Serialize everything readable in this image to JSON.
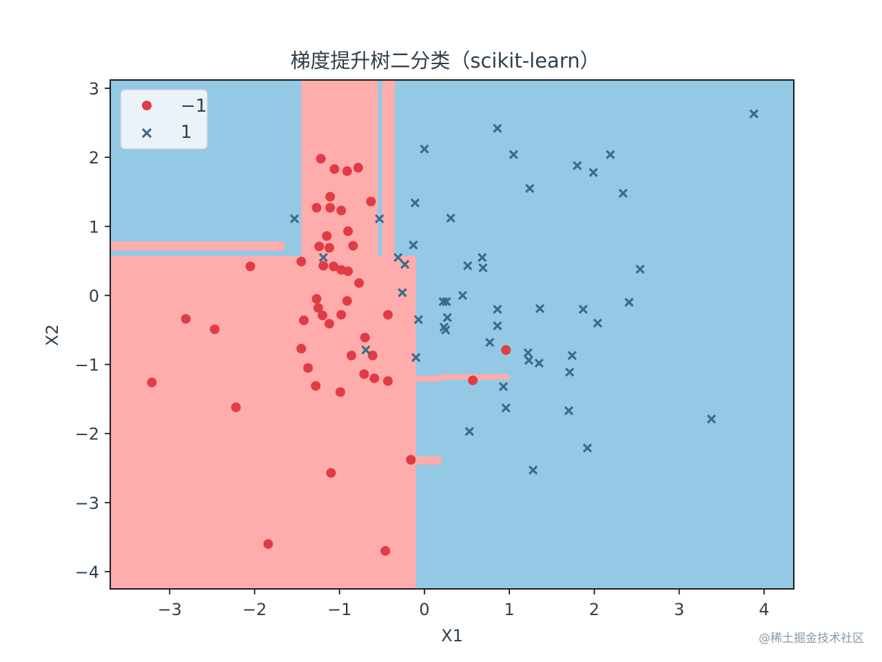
{
  "watermark": "@稀土掘金技术社区",
  "colors": {
    "region_neg": "#ffacac",
    "region_pos": "#93c9e5",
    "point_neg": "#e03c46",
    "point_pos": "#3b6b8c",
    "text": "#2e3f4c"
  },
  "chart_data": {
    "type": "scatter",
    "title": "梯度提升树二分类（scikit-learn）",
    "xlabel": "X1",
    "ylabel": "X2",
    "xlim": [
      -3.7,
      4.35
    ],
    "ylim": [
      -4.25,
      3.12
    ],
    "xticks": [
      -3,
      -2,
      -1,
      0,
      1,
      2,
      3,
      4
    ],
    "xtick_labels": [
      "−3",
      "−2",
      "−1",
      "0",
      "1",
      "2",
      "3",
      "4"
    ],
    "yticks": [
      3,
      2,
      1,
      0,
      -1,
      -2,
      -3,
      -4
    ],
    "ytick_labels": [
      "3",
      "2",
      "1",
      "0",
      "−1",
      "−2",
      "−3",
      "−4"
    ],
    "grid": false,
    "legend_position": "top-left",
    "series": [
      {
        "name": "−1",
        "marker": "circle",
        "points": [
          [
            -1.22,
            1.98
          ],
          [
            -1.06,
            1.83
          ],
          [
            -0.91,
            1.8
          ],
          [
            -0.78,
            1.85
          ],
          [
            -1.11,
            1.43
          ],
          [
            -0.63,
            1.36
          ],
          [
            -1.27,
            1.27
          ],
          [
            -1.11,
            1.27
          ],
          [
            -0.98,
            1.23
          ],
          [
            -0.9,
            0.93
          ],
          [
            -1.15,
            0.86
          ],
          [
            -1.24,
            0.71
          ],
          [
            -1.12,
            0.69
          ],
          [
            -0.84,
            0.72
          ],
          [
            -1.45,
            0.49
          ],
          [
            -2.05,
            0.42
          ],
          [
            -1.19,
            0.43
          ],
          [
            -1.07,
            0.42
          ],
          [
            -0.98,
            0.37
          ],
          [
            -0.9,
            0.35
          ],
          [
            -0.77,
            0.18
          ],
          [
            -1.27,
            -0.05
          ],
          [
            -0.91,
            -0.08
          ],
          [
            -1.25,
            -0.18
          ],
          [
            -1.42,
            -0.36
          ],
          [
            -1.2,
            -0.29
          ],
          [
            -0.98,
            -0.28
          ],
          [
            -1.12,
            -0.41
          ],
          [
            -0.43,
            -0.28
          ],
          [
            -2.81,
            -0.34
          ],
          [
            -2.47,
            -0.49
          ],
          [
            -0.7,
            -0.61
          ],
          [
            -1.45,
            -0.77
          ],
          [
            -0.86,
            -0.87
          ],
          [
            -0.61,
            -0.87
          ],
          [
            -1.37,
            -1.05
          ],
          [
            -0.71,
            -1.14
          ],
          [
            -0.59,
            -1.2
          ],
          [
            -0.43,
            -1.24
          ],
          [
            -1.28,
            -1.31
          ],
          [
            -0.99,
            -1.4
          ],
          [
            -3.21,
            -1.26
          ],
          [
            -2.22,
            -1.62
          ],
          [
            0.96,
            -0.79
          ],
          [
            0.57,
            -1.23
          ],
          [
            -0.16,
            -2.38
          ],
          [
            -1.1,
            -2.57
          ],
          [
            -1.84,
            -3.6
          ],
          [
            -0.46,
            -3.7
          ]
        ]
      },
      {
        "name": "1",
        "marker": "x",
        "points": [
          [
            3.88,
            2.63
          ],
          [
            0.86,
            2.42
          ],
          [
            0.0,
            2.12
          ],
          [
            1.05,
            2.04
          ],
          [
            1.8,
            1.88
          ],
          [
            2.19,
            2.04
          ],
          [
            1.99,
            1.78
          ],
          [
            1.24,
            1.55
          ],
          [
            2.34,
            1.48
          ],
          [
            -0.11,
            1.34
          ],
          [
            -1.53,
            1.11
          ],
          [
            -0.53,
            1.11
          ],
          [
            0.31,
            1.12
          ],
          [
            -0.13,
            0.73
          ],
          [
            -1.19,
            0.55
          ],
          [
            -0.31,
            0.55
          ],
          [
            0.68,
            0.55
          ],
          [
            -0.23,
            0.45
          ],
          [
            0.51,
            0.43
          ],
          [
            0.69,
            0.4
          ],
          [
            2.54,
            0.38
          ],
          [
            -0.26,
            0.04
          ],
          [
            0.45,
            0.0
          ],
          [
            0.22,
            -0.09
          ],
          [
            0.26,
            -0.09
          ],
          [
            0.86,
            -0.2
          ],
          [
            1.36,
            -0.19
          ],
          [
            1.87,
            -0.2
          ],
          [
            2.41,
            -0.1
          ],
          [
            -0.07,
            -0.35
          ],
          [
            0.27,
            -0.32
          ],
          [
            0.86,
            -0.44
          ],
          [
            2.04,
            -0.4
          ],
          [
            0.23,
            -0.46
          ],
          [
            0.25,
            -0.5
          ],
          [
            0.77,
            -0.68
          ],
          [
            1.22,
            -0.83
          ],
          [
            1.23,
            -0.94
          ],
          [
            1.35,
            -0.98
          ],
          [
            1.74,
            -0.87
          ],
          [
            1.71,
            -1.11
          ],
          [
            -0.69,
            -0.79
          ],
          [
            -0.1,
            -0.9
          ],
          [
            0.93,
            -1.32
          ],
          [
            0.96,
            -1.63
          ],
          [
            1.7,
            -1.67
          ],
          [
            0.53,
            -1.97
          ],
          [
            1.92,
            -2.21
          ],
          [
            1.28,
            -2.53
          ],
          [
            3.38,
            -1.79
          ]
        ]
      }
    ],
    "decision_regions": {
      "background_class": "1",
      "class_-1_rectangles": [
        [
          -3.7,
          -0.1,
          -4.25,
          0.57
        ],
        [
          -0.1,
          0.2,
          -2.45,
          -2.33
        ],
        [
          -1.45,
          -0.55,
          0.57,
          3.12
        ],
        [
          -0.5,
          -0.35,
          0.57,
          3.12
        ],
        [
          -0.35,
          -0.1,
          -1.2,
          -0.73
        ],
        [
          -3.7,
          -1.65,
          0.65,
          0.78
        ],
        [
          -0.55,
          -0.5,
          -0.55,
          0.57
        ],
        [
          -0.1,
          0.2,
          -1.25,
          -1.16
        ],
        [
          0.2,
          1.0,
          -1.22,
          -1.14
        ]
      ]
    }
  }
}
